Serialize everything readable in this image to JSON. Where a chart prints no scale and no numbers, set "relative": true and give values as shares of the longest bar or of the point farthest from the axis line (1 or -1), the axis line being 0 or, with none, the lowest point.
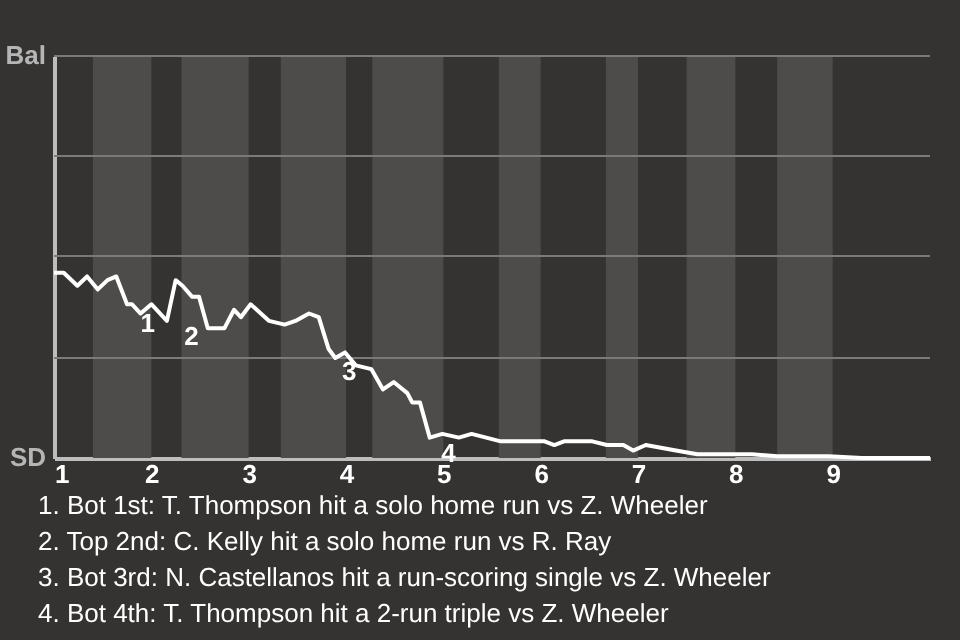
{
  "chart_data": {
    "type": "line",
    "x": [
      1,
      1.1,
      1.24,
      1.34,
      1.45,
      1.55,
      1.64,
      1.75,
      1.8,
      1.89,
      2,
      2.16,
      2.25,
      2.32,
      2.42,
      2.49,
      2.58,
      2.75,
      2.85,
      2.92,
      3.02,
      3.21,
      3.37,
      3.48,
      3.62,
      3.72,
      3.82,
      3.89,
      3.99,
      4.1,
      4.26,
      4.38,
      4.49,
      4.63,
      4.68,
      4.76,
      4.86,
      4.99,
      5.16,
      5.29,
      5.59,
      5.76,
      6.04,
      6.14,
      6.24,
      6.53,
      6.68,
      6.85,
      6.95,
      7.08,
      7.39,
      7.61,
      8.17,
      8.43,
      8.96,
      9.3,
      10
    ],
    "series": [
      {
        "color": "#ffffff",
        "values": [
          1,
          1,
          0.93,
          0.98,
          0.91,
          0.96,
          0.98,
          0.83,
          0.83,
          0.78,
          0.83,
          0.74,
          0.96,
          0.93,
          0.87,
          0.87,
          0.7,
          0.7,
          0.8,
          0.76,
          0.83,
          0.74,
          0.72,
          0.74,
          0.78,
          0.76,
          0.59,
          0.54,
          0.57,
          0.5,
          0.48,
          0.37,
          0.41,
          0.35,
          0.3,
          0.3,
          0.11,
          0.13,
          0.11,
          0.13,
          0.09,
          0.09,
          0.09,
          0.07,
          0.09,
          0.09,
          0.07,
          0.07,
          0.04,
          0.07,
          0.04,
          0.02,
          0.02,
          0.01,
          0.01,
          0,
          0
        ]
      }
    ],
    "relative": true,
    "xlim": [
      1,
      10
    ],
    "xticks": [
      1,
      2,
      3,
      4,
      5,
      6,
      7,
      8,
      9
    ],
    "ref_lines": [
      {
        "axis": "y",
        "value": 0.54,
        "color": "#7a7a78"
      },
      {
        "axis": "y",
        "value": 1.09,
        "color": "#7a7a78"
      },
      {
        "axis": "y",
        "value": 1.63,
        "color": "#7a7a78"
      },
      {
        "axis": "y",
        "value": 2.17,
        "color": "#7a7a78"
      }
    ],
    "line_style": "solid",
    "marker": "none",
    "bands": [
      {
        "axis": "x",
        "from": 1.4,
        "to": 2,
        "color": "#4d4c4a"
      },
      {
        "axis": "x",
        "from": 2.31,
        "to": 3,
        "color": "#4d4c4a"
      },
      {
        "axis": "x",
        "from": 3.33,
        "to": 4,
        "color": "#4d4c4a"
      },
      {
        "axis": "x",
        "from": 4.27,
        "to": 5,
        "color": "#4d4c4a"
      },
      {
        "axis": "x",
        "from": 5.57,
        "to": 6,
        "color": "#4d4c4a"
      },
      {
        "axis": "x",
        "from": 6.67,
        "to": 7,
        "color": "#4d4c4a"
      },
      {
        "axis": "x",
        "from": 7.5,
        "to": 8,
        "color": "#4d4c4a"
      },
      {
        "axis": "x",
        "from": 8.43,
        "to": 9,
        "color": "#4d4c4a"
      }
    ],
    "annotations": [
      "Bal",
      "SD",
      {
        "text": "1",
        "x": 1.84,
        "y": 0.83
      },
      {
        "text": "2",
        "x": 2.29,
        "y": 0.76
      },
      {
        "text": "3",
        "x": 3.91,
        "y": 0.57
      },
      {
        "text": "4",
        "x": 4.93,
        "y": 0.13
      },
      "1. Bot 1st: T. Thompson hit a solo home run vs Z. Wheeler",
      "2. Top 2nd: C. Kelly hit a solo home run vs R. Ray",
      "3. Bot 3rd: N. Castellanos hit a run-scoring single vs Z. Wheeler",
      "4. Bot 4th: T. Thompson hit a 2-run triple vs Z. Wheeler"
    ]
  }
}
